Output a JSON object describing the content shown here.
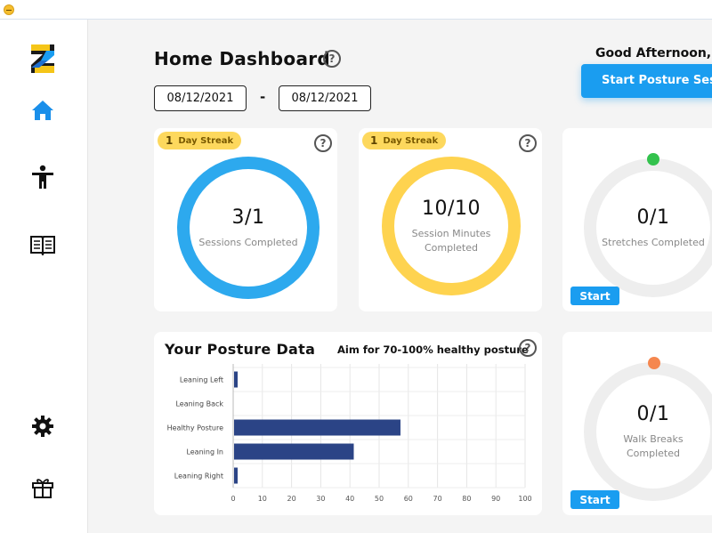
{
  "sidebar": {
    "logo": "z-logo-icon",
    "items": [
      {
        "icon": "home-icon",
        "active": true
      },
      {
        "icon": "posture-person-icon",
        "active": false
      },
      {
        "icon": "book-icon",
        "active": false
      },
      {
        "icon": "gear-icon",
        "active": false
      },
      {
        "icon": "gift-icon",
        "active": false
      }
    ]
  },
  "header": {
    "title": "Home Dashboard",
    "greeting": "Good Afternoon, Yo",
    "start_posture_label": "Start Posture Sessi",
    "date_from": "08/12/2021",
    "date_separator": "-",
    "date_to": "08/12/2021"
  },
  "cards": {
    "sessions": {
      "streak_count": "1",
      "streak_label": "Day Streak",
      "value": "3/1",
      "label": "Sessions Completed",
      "ring_color": "#2da9ee",
      "progress": 1.0
    },
    "minutes": {
      "streak_count": "1",
      "streak_label": "Day Streak",
      "value": "10/10",
      "label": "Session Minutes Completed",
      "ring_color": "#fed34f",
      "progress": 1.0
    },
    "stretches": {
      "value": "0/1",
      "label": "Stretches Completed",
      "dot_color": "#33c24d",
      "start_label": "Start",
      "progress": 0
    },
    "walk": {
      "value": "0/1",
      "label": "Walk Breaks Completed",
      "dot_color": "#f5874f",
      "start_label": "Start",
      "progress": 0
    }
  },
  "posture": {
    "title": "Your Posture Data",
    "aim": "Aim for 70-100% healthy posture"
  },
  "colors": {
    "accent": "#1a9df0",
    "bar": "#2b4486"
  },
  "chart_data": {
    "type": "bar",
    "orientation": "horizontal",
    "categories": [
      "Leaning Left",
      "Leaning Back",
      "Healthy Posture",
      "Leaning In",
      "Leaning Right"
    ],
    "values": [
      1,
      0,
      57,
      41,
      1
    ],
    "xlim": [
      0,
      100
    ],
    "xticks": [
      "0",
      "10",
      "20",
      "30",
      "40",
      "50",
      "60",
      "70",
      "80",
      "90",
      "100"
    ],
    "grid": true
  }
}
